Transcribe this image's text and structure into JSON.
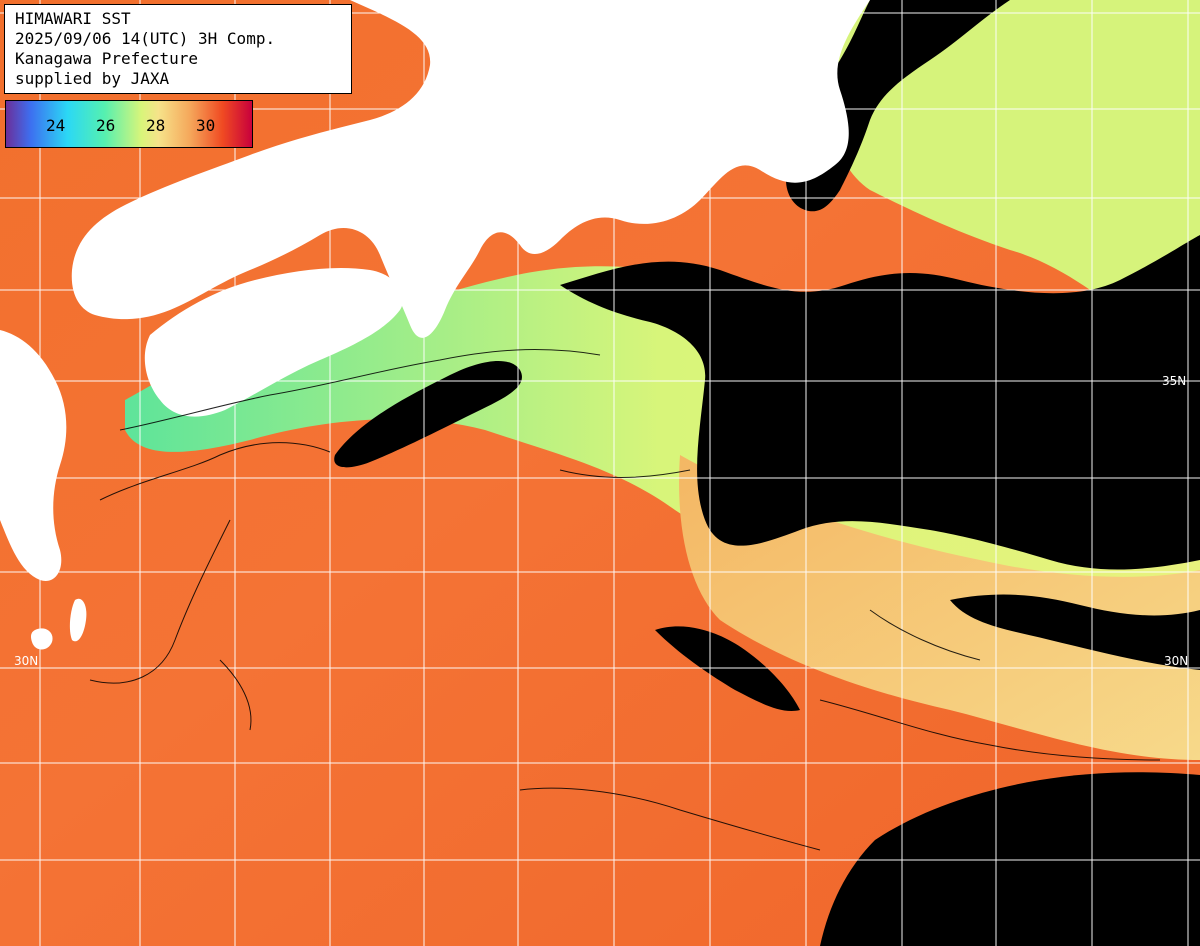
{
  "header": {
    "line1": "HIMAWARI SST",
    "line2": "2025/09/06 14(UTC) 3H Comp.",
    "line3": "Kanagawa Prefecture",
    "line4": "supplied by JAXA"
  },
  "legend": {
    "labels": [
      "24",
      "26",
      "28",
      "30"
    ],
    "colors": {
      "low": "#6b2f9a",
      "cool": "#2bd8f5",
      "mid": "#d8f57a",
      "warm": "#f5a65a",
      "hot": "#c8003c"
    }
  },
  "grid_labels": {
    "lat_30": "30N",
    "lat_30_right": "30N",
    "lat_35_right": "35N"
  },
  "map_colors": {
    "sea_warm": "#f06a2a",
    "sea_mid": "#f6b866",
    "sea_cool": "#dff27b",
    "cloud": "#000000",
    "land": "#ffffff",
    "grid": "#ffffff"
  }
}
